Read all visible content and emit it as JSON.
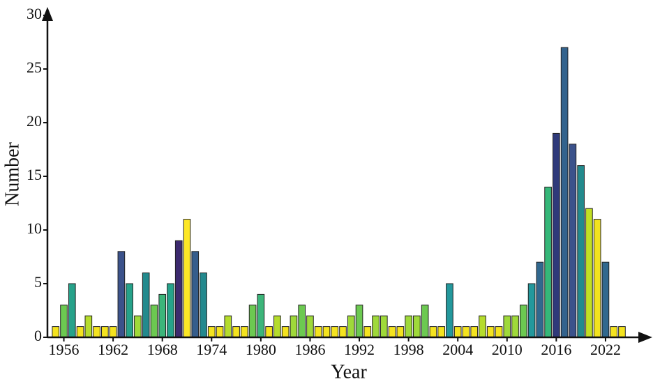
{
  "chart_data": {
    "type": "bar",
    "x_label": "Year",
    "y_label": "Number",
    "x": [
      1955,
      1956,
      1957,
      1958,
      1959,
      1960,
      1961,
      1962,
      1963,
      1964,
      1965,
      1966,
      1967,
      1968,
      1969,
      1970,
      1971,
      1972,
      1973,
      1974,
      1975,
      1976,
      1977,
      1978,
      1979,
      1980,
      1981,
      1982,
      1983,
      1984,
      1985,
      1986,
      1987,
      1988,
      1989,
      1990,
      1991,
      1992,
      1993,
      1994,
      1995,
      1996,
      1997,
      1998,
      1999,
      2000,
      2001,
      2002,
      2003,
      2004,
      2005,
      2006,
      2007,
      2008,
      2009,
      2010,
      2011,
      2012,
      2013,
      2014,
      2015,
      2016,
      2017,
      2018,
      2019,
      2020,
      2021,
      2022,
      2023,
      2024
    ],
    "values": [
      1,
      3,
      5,
      1,
      2,
      1,
      1,
      1,
      8,
      5,
      2,
      6,
      3,
      4,
      5,
      9,
      11,
      8,
      6,
      1,
      1,
      2,
      1,
      1,
      3,
      4,
      1,
      2,
      1,
      2,
      3,
      2,
      1,
      1,
      1,
      1,
      2,
      3,
      1,
      2,
      2,
      1,
      1,
      2,
      2,
      3,
      1,
      1,
      5,
      1,
      1,
      1,
      2,
      1,
      1,
      2,
      2,
      3,
      5,
      7,
      14,
      19,
      27,
      18,
      16,
      12,
      11,
      7,
      1,
      1
    ],
    "colors": [
      "#f4e31f",
      "#6cc951",
      "#26a28a",
      "#f4e31f",
      "#b5dc2c",
      "#f4e31f",
      "#f4e31f",
      "#f4e31f",
      "#3b528b",
      "#26a28a",
      "#9fd93a",
      "#238a8d",
      "#6cc951",
      "#3cb57a",
      "#26a28a",
      "#3c2a6e",
      "#fde725",
      "#355d8c",
      "#23898e",
      "#f4e31f",
      "#f4e31f",
      "#b5dc2c",
      "#f4e31f",
      "#f4e31f",
      "#6cc951",
      "#3cb57a",
      "#f4e31f",
      "#b5dc2c",
      "#f4e31f",
      "#9fd93a",
      "#6cc951",
      "#9fd93a",
      "#f4e31f",
      "#f4e31f",
      "#f4e31f",
      "#f4e31f",
      "#9fd93a",
      "#6cc951",
      "#f4e31f",
      "#9fd93a",
      "#9fd93a",
      "#f4e31f",
      "#f4e31f",
      "#9fd93a",
      "#9fd93a",
      "#6cc951",
      "#f4e31f",
      "#f4e31f",
      "#23989c",
      "#f4e31f",
      "#f4e31f",
      "#f4e31f",
      "#b5dc2c",
      "#f4e31f",
      "#f4e31f",
      "#9fd93a",
      "#9fd93a",
      "#6cc951",
      "#23989c",
      "#31688e",
      "#35b779",
      "#2f3a7a",
      "#33638d",
      "#3b528b",
      "#238a8d",
      "#c2df23",
      "#f2e21e",
      "#31688e",
      "#f4e31f",
      "#f4e31f"
    ],
    "xlim": [
      1954,
      2026
    ],
    "xticks": [
      1956,
      1962,
      1968,
      1974,
      1980,
      1986,
      1992,
      1998,
      2004,
      2010,
      2016,
      2022
    ],
    "ylim": [
      0,
      30
    ],
    "yticks": [
      0,
      5,
      10,
      15,
      20,
      25,
      30
    ]
  }
}
